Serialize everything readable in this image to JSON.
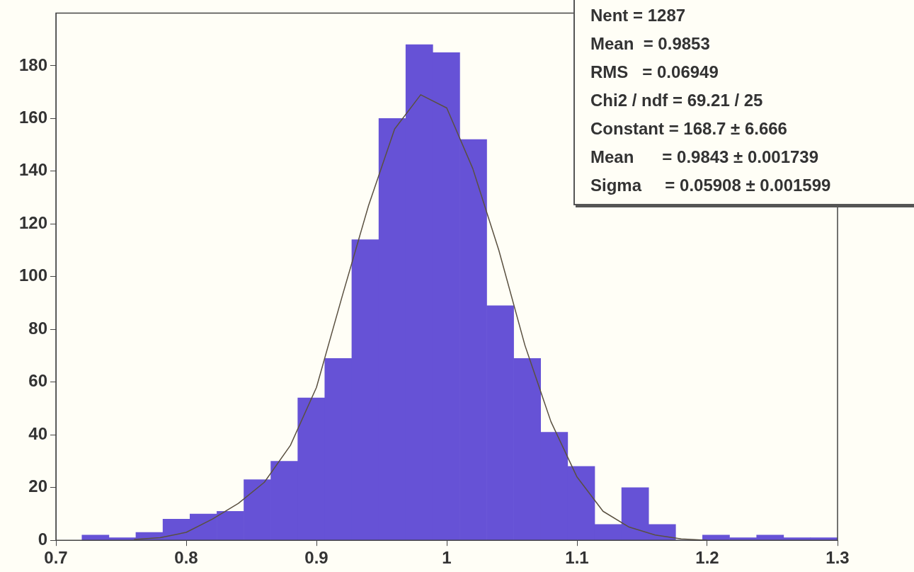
{
  "chart_data": {
    "type": "histogram",
    "bins": [
      0.72,
      0.7407,
      0.7614,
      0.7821,
      0.8029,
      0.8236,
      0.8443,
      0.865,
      0.8857,
      0.9064,
      0.9271,
      0.9479,
      0.9686,
      0.9893,
      1.01,
      1.0307,
      1.0514,
      1.0721,
      1.0929,
      1.1136,
      1.1343,
      1.155,
      1.1757,
      1.1964,
      1.2171,
      1.2379,
      1.2586,
      1.2793,
      1.3
    ],
    "series": [
      {
        "type": "histogram",
        "color": "#6652d6",
        "values": [
          2,
          1,
          3,
          8,
          10,
          11,
          23,
          30,
          54,
          69,
          114,
          160,
          188,
          185,
          152,
          89,
          69,
          41,
          28,
          6,
          20,
          6,
          0,
          2,
          1,
          2,
          1,
          1
        ]
      },
      {
        "type": "line",
        "color": "#5a5040",
        "x": [
          0.76,
          0.78,
          0.8,
          0.82,
          0.84,
          0.86,
          0.88,
          0.9,
          0.92,
          0.94,
          0.96,
          0.98,
          1.0,
          1.02,
          1.04,
          1.06,
          1.08,
          1.1,
          1.12,
          1.14,
          1.16,
          1.18,
          1.2
        ],
        "values": [
          0.3,
          1,
          3,
          8,
          14,
          22,
          36,
          58,
          93,
          127,
          156,
          169,
          164,
          141,
          110,
          74,
          45,
          24,
          11,
          5,
          2,
          0.5,
          0
        ]
      }
    ],
    "marker": "none",
    "xlim": [
      0.7,
      1.3
    ],
    "xticks": [
      0.7,
      0.8,
      0.9,
      1,
      1.1,
      1.2,
      1.3
    ],
    "ylim": [
      0,
      200
    ],
    "yticks": [
      0,
      20,
      40,
      60,
      80,
      100,
      120,
      140,
      160,
      180
    ],
    "grid": false,
    "legend": false,
    "annotations": [
      "Nent = 1287",
      "Mean  = 0.9853",
      "RMS   = 0.06949",
      "Chi2 / ndf = 69.21 / 25",
      "Constant = 168.7 ± 6.666",
      "Mean      = 0.9843 ± 0.001739",
      "Sigma     = 0.05908 ± 0.001599"
    ]
  }
}
